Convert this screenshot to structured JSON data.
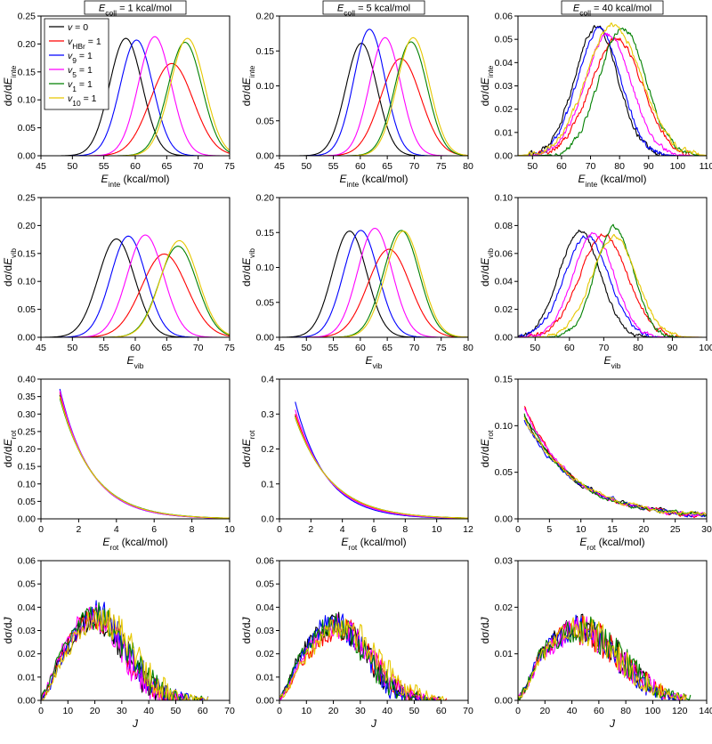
{
  "colors": {
    "v0": "#000000",
    "vHBr": "#ff0000",
    "v9": "#0000ff",
    "v5": "#ff00ff",
    "v1": "#008000",
    "v10": "#e6c800"
  },
  "column_headers": [
    {
      "symbol": "E",
      "sub": "coll",
      "text": " = 1 kcal/mol"
    },
    {
      "symbol": "E",
      "sub": "coll",
      "text": " = 5 kcal/mol"
    },
    {
      "symbol": "E",
      "sub": "coll",
      "text": " = 40 kcal/mol"
    }
  ],
  "legend": [
    {
      "key": "v0",
      "symbol": "v",
      "sub": "",
      "text": " = 0"
    },
    {
      "key": "vHBr",
      "symbol": "v",
      "sub": "HBr",
      "text": " = 1"
    },
    {
      "key": "v9",
      "symbol": "v",
      "sub": "9",
      "text": " = 1"
    },
    {
      "key": "v5",
      "symbol": "v",
      "sub": "5",
      "text": " = 1"
    },
    {
      "key": "v1",
      "symbol": "v",
      "sub": "1",
      "text": " = 1"
    },
    {
      "key": "v10",
      "symbol": "v",
      "sub": "10",
      "text": " = 1"
    }
  ],
  "chart_data": [
    {
      "type": "line",
      "panel": "inte-1",
      "kind": "gauss",
      "xlim": [
        45,
        75
      ],
      "xticks": [
        45,
        50,
        55,
        60,
        65,
        70,
        75
      ],
      "ylim": [
        0,
        0.25
      ],
      "yticks": [
        "0.00",
        "0.05",
        "0.10",
        "0.15",
        "0.20",
        "0.25"
      ],
      "xlabel": {
        "sym": "E",
        "sub": "inte",
        "rest": " (kcal/mol)"
      },
      "ylabel": {
        "pre": "dσ/d",
        "sym": "E",
        "sub": "inte"
      },
      "series": [
        {
          "name": "v = 0",
          "key": "v0",
          "center": 58.5,
          "sigma": 2.6,
          "peak": 0.21
        },
        {
          "name": "vHBr = 1",
          "key": "vHBr",
          "center": 65.8,
          "sigma": 3.4,
          "peak": 0.165
        },
        {
          "name": "v9 = 1",
          "key": "v9",
          "center": 60.2,
          "sigma": 2.6,
          "peak": 0.207
        },
        {
          "name": "v5 = 1",
          "key": "v5",
          "center": 63.1,
          "sigma": 2.6,
          "peak": 0.213
        },
        {
          "name": "v1 = 1",
          "key": "v1",
          "center": 67.9,
          "sigma": 2.7,
          "peak": 0.203
        },
        {
          "name": "v10 = 1",
          "key": "v10",
          "center": 68.3,
          "sigma": 2.7,
          "peak": 0.21
        }
      ]
    },
    {
      "type": "line",
      "panel": "inte-5",
      "kind": "gauss",
      "xlim": [
        45,
        80
      ],
      "xticks": [
        45,
        50,
        55,
        60,
        65,
        70,
        75,
        80
      ],
      "ylim": [
        0,
        0.2
      ],
      "yticks": [
        "0.00",
        "0.05",
        "0.10",
        "0.15",
        "0.20"
      ],
      "xlabel": {
        "sym": "E",
        "sub": "inte",
        "rest": " (kcal/mol)"
      },
      "ylabel": {
        "pre": "dσ/d",
        "sym": "E",
        "sub": "inte"
      },
      "series": [
        {
          "name": "v = 0",
          "key": "v0",
          "center": 60.2,
          "sigma": 2.9,
          "peak": 0.161
        },
        {
          "name": "vHBr = 1",
          "key": "vHBr",
          "center": 67.5,
          "sigma": 3.7,
          "peak": 0.139
        },
        {
          "name": "v9 = 1",
          "key": "v9",
          "center": 61.7,
          "sigma": 2.9,
          "peak": 0.181
        },
        {
          "name": "v5 = 1",
          "key": "v5",
          "center": 64.6,
          "sigma": 2.9,
          "peak": 0.169
        },
        {
          "name": "v1 = 1",
          "key": "v1",
          "center": 69.4,
          "sigma": 3.0,
          "peak": 0.163
        },
        {
          "name": "v10 = 1",
          "key": "v10",
          "center": 69.8,
          "sigma": 3.0,
          "peak": 0.169
        }
      ]
    },
    {
      "type": "line",
      "panel": "inte-40",
      "kind": "noisy",
      "noise": 0.0025,
      "xlim": [
        45,
        110
      ],
      "xticks": [
        50,
        60,
        70,
        80,
        90,
        100,
        110
      ],
      "ylim": [
        0,
        0.06
      ],
      "yticks": [
        "0.00",
        "0.01",
        "0.02",
        "0.03",
        "0.04",
        "0.05",
        "0.06"
      ],
      "xlabel": {
        "sym": "E",
        "sub": "inte",
        "rest": " (kcal/mol)"
      },
      "ylabel": {
        "pre": "dσ/d",
        "sym": "E",
        "sub": "inte"
      },
      "series": [
        {
          "name": "v = 0",
          "key": "v0",
          "center": 72,
          "sigma": 7.5,
          "peak": 0.055
        },
        {
          "name": "vHBr = 1",
          "key": "vHBr",
          "center": 79,
          "sigma": 9.0,
          "peak": 0.05
        },
        {
          "name": "v9 = 1",
          "key": "v9",
          "center": 73,
          "sigma": 7.5,
          "peak": 0.054
        },
        {
          "name": "v5 = 1",
          "key": "v5",
          "center": 76,
          "sigma": 8.0,
          "peak": 0.052
        },
        {
          "name": "v1 = 1",
          "key": "v1",
          "center": 81,
          "sigma": 8.0,
          "peak": 0.055
        },
        {
          "name": "v10 = 1",
          "key": "v10",
          "center": 78,
          "sigma": 9.5,
          "peak": 0.056
        }
      ]
    },
    {
      "type": "line",
      "panel": "vib-1",
      "kind": "gauss",
      "xlim": [
        45,
        75
      ],
      "xticks": [
        45,
        50,
        55,
        60,
        65,
        70,
        75
      ],
      "ylim": [
        0,
        0.25
      ],
      "yticks": [
        "0.00",
        "0.05",
        "0.10",
        "0.15",
        "0.20",
        "0.25"
      ],
      "xlabel": {
        "sym": "E",
        "sub": "vib",
        "rest": ""
      },
      "ylabel": {
        "pre": "dσ/d",
        "sym": "E",
        "sub": "vib"
      },
      "series": [
        {
          "name": "v = 0",
          "key": "v0",
          "center": 57.0,
          "sigma": 2.9,
          "peak": 0.176
        },
        {
          "name": "vHBr = 1",
          "key": "vHBr",
          "center": 64.6,
          "sigma": 3.6,
          "peak": 0.149
        },
        {
          "name": "v9 = 1",
          "key": "v9",
          "center": 58.9,
          "sigma": 2.8,
          "peak": 0.181
        },
        {
          "name": "v5 = 1",
          "key": "v5",
          "center": 61.6,
          "sigma": 2.9,
          "peak": 0.183
        },
        {
          "name": "v1 = 1",
          "key": "v1",
          "center": 66.8,
          "sigma": 3.0,
          "peak": 0.163
        },
        {
          "name": "v10 = 1",
          "key": "v10",
          "center": 67.0,
          "sigma": 3.0,
          "peak": 0.173
        }
      ]
    },
    {
      "type": "line",
      "panel": "vib-5",
      "kind": "gauss",
      "xlim": [
        45,
        80
      ],
      "xticks": [
        45,
        50,
        55,
        60,
        65,
        70,
        75,
        80
      ],
      "ylim": [
        0,
        0.2
      ],
      "yticks": [
        "0.00",
        "0.05",
        "0.10",
        "0.15",
        "0.20"
      ],
      "xlabel": {
        "sym": "E",
        "sub": "vib",
        "rest": ""
      },
      "ylabel": {
        "pre": "dσ/d",
        "sym": "E",
        "sub": "vib"
      },
      "series": [
        {
          "name": "v = 0",
          "key": "v0",
          "center": 58.0,
          "sigma": 3.2,
          "peak": 0.152
        },
        {
          "name": "vHBr = 1",
          "key": "vHBr",
          "center": 65.3,
          "sigma": 3.9,
          "peak": 0.126
        },
        {
          "name": "v9 = 1",
          "key": "v9",
          "center": 60.1,
          "sigma": 3.2,
          "peak": 0.153
        },
        {
          "name": "v5 = 1",
          "key": "v5",
          "center": 62.7,
          "sigma": 3.2,
          "peak": 0.156
        },
        {
          "name": "v1 = 1",
          "key": "v1",
          "center": 67.6,
          "sigma": 3.3,
          "peak": 0.153
        },
        {
          "name": "v10 = 1",
          "key": "v10",
          "center": 68.0,
          "sigma": 3.3,
          "peak": 0.152
        }
      ]
    },
    {
      "type": "line",
      "panel": "vib-40",
      "kind": "noisy",
      "noise": 0.003,
      "xlim": [
        45,
        100
      ],
      "xticks": [
        50,
        60,
        70,
        80,
        90,
        100
      ],
      "ylim": [
        0,
        0.1
      ],
      "yticks": [
        "0.00",
        "0.02",
        "0.04",
        "0.06",
        "0.08",
        "0.10"
      ],
      "xlabel": {
        "sym": "E",
        "sub": "vib",
        "rest": ""
      },
      "ylabel": {
        "pre": "dσ/d",
        "sym": "E",
        "sub": "vib"
      },
      "series": [
        {
          "name": "v = 0",
          "key": "v0",
          "center": 63,
          "sigma": 6.0,
          "peak": 0.076
        },
        {
          "name": "vHBr = 1",
          "key": "vHBr",
          "center": 70,
          "sigma": 7.0,
          "peak": 0.073
        },
        {
          "name": "v9 = 1",
          "key": "v9",
          "center": 65,
          "sigma": 6.5,
          "peak": 0.072
        },
        {
          "name": "v5 = 1",
          "key": "v5",
          "center": 67,
          "sigma": 6.0,
          "peak": 0.074
        },
        {
          "name": "v1 = 1",
          "key": "v1",
          "center": 73,
          "sigma": 5.5,
          "peak": 0.079
        },
        {
          "name": "v10 = 1",
          "key": "v10",
          "center": 73,
          "sigma": 6.5,
          "peak": 0.072
        }
      ]
    },
    {
      "type": "line",
      "panel": "rot-1",
      "kind": "decay",
      "noise": 0,
      "xlim": [
        0,
        10
      ],
      "xticks": [
        0,
        2,
        4,
        6,
        8,
        10
      ],
      "ylim": [
        0,
        0.4
      ],
      "yticks": [
        "0.00",
        "0.05",
        "0.10",
        "0.15",
        "0.20",
        "0.25",
        "0.30",
        "0.35",
        "0.40"
      ],
      "xlabel": {
        "sym": "E",
        "sub": "rot",
        "rest": " (kcal/mol)"
      },
      "ylabel": {
        "pre": "dσ/d",
        "sym": "E",
        "sub": "rot"
      },
      "series": [
        {
          "name": "v = 0",
          "key": "v0",
          "x0": 1,
          "y0": 0.355,
          "tau": 1.72
        },
        {
          "name": "vHBr = 1",
          "key": "vHBr",
          "x0": 1,
          "y0": 0.362,
          "tau": 1.7
        },
        {
          "name": "v9 = 1",
          "key": "v9",
          "x0": 1,
          "y0": 0.372,
          "tau": 1.65
        },
        {
          "name": "v5 = 1",
          "key": "v5",
          "x0": 1,
          "y0": 0.367,
          "tau": 1.67
        },
        {
          "name": "v1 = 1",
          "key": "v1",
          "x0": 1,
          "y0": 0.345,
          "tau": 1.78
        },
        {
          "name": "v10 = 1",
          "key": "v10",
          "x0": 1,
          "y0": 0.35,
          "tau": 1.75
        }
      ]
    },
    {
      "type": "line",
      "panel": "rot-5",
      "kind": "decay",
      "noise": 0,
      "xlim": [
        0,
        12
      ],
      "xticks": [
        0,
        2,
        4,
        6,
        8,
        10,
        12
      ],
      "ylim": [
        0,
        0.4
      ],
      "yticks": [
        "0.0",
        "0.1",
        "0.2",
        "0.3",
        "0.4"
      ],
      "xlabel": {
        "sym": "E",
        "sub": "rot",
        "rest": " (kcal/mol)"
      },
      "ylabel": {
        "pre": "dσ/d",
        "sym": "E",
        "sub": "rot"
      },
      "series": [
        {
          "name": "v = 0",
          "key": "v0",
          "x0": 1,
          "y0": 0.295,
          "tau": 2.25
        },
        {
          "name": "vHBr = 1",
          "key": "vHBr",
          "x0": 1,
          "y0": 0.3,
          "tau": 2.2
        },
        {
          "name": "v9 = 1",
          "key": "v9",
          "x0": 1,
          "y0": 0.335,
          "tau": 1.95
        },
        {
          "name": "v5 = 1",
          "key": "v5",
          "x0": 1,
          "y0": 0.312,
          "tau": 2.1
        },
        {
          "name": "v1 = 1",
          "key": "v1",
          "x0": 1,
          "y0": 0.29,
          "tau": 2.3
        },
        {
          "name": "v10 = 1",
          "key": "v10",
          "x0": 1,
          "y0": 0.292,
          "tau": 2.28
        }
      ]
    },
    {
      "type": "line",
      "panel": "rot-40",
      "kind": "decay",
      "noise": 0.002,
      "xlim": [
        0,
        30
      ],
      "xticks": [
        0,
        5,
        10,
        15,
        20,
        25,
        30
      ],
      "ylim": [
        0,
        0.15
      ],
      "yticks": [
        "0.00",
        "0.05",
        "0.10",
        "0.15"
      ],
      "xlabel": {
        "sym": "E",
        "sub": "rot",
        "rest": " (kcal/mol)"
      },
      "ylabel": {
        "pre": "dσ/d",
        "sym": "E",
        "sub": "rot"
      },
      "series": [
        {
          "name": "v = 0",
          "key": "v0",
          "x0": 1,
          "y0": 0.11,
          "tau": 8.5
        },
        {
          "name": "vHBr = 1",
          "key": "vHBr",
          "x0": 1,
          "y0": 0.12,
          "tau": 7.8
        },
        {
          "name": "v9 = 1",
          "key": "v9",
          "x0": 1,
          "y0": 0.105,
          "tau": 8.8
        },
        {
          "name": "v5 = 1",
          "key": "v5",
          "x0": 1,
          "y0": 0.118,
          "tau": 8.0
        },
        {
          "name": "v1 = 1",
          "key": "v1",
          "x0": 1,
          "y0": 0.112,
          "tau": 8.3
        },
        {
          "name": "v10 = 1",
          "key": "v10",
          "x0": 1,
          "y0": 0.108,
          "tau": 8.6
        }
      ]
    },
    {
      "type": "line",
      "panel": "J-1",
      "kind": "jdist",
      "noise": 0.007,
      "xlim": [
        0,
        70
      ],
      "xticks": [
        0,
        10,
        20,
        30,
        40,
        50,
        60,
        70
      ],
      "ylim": [
        0,
        0.06
      ],
      "yticks": [
        "0.00",
        "0.01",
        "0.02",
        "0.03",
        "0.04",
        "0.05",
        "0.06"
      ],
      "xlabel": {
        "sym": "J",
        "sub": "",
        "rest": ""
      },
      "ylabel": {
        "pre": "dσ/d",
        "sym": "J",
        "sub": ""
      },
      "series": [
        {
          "name": "v = 0",
          "key": "v0",
          "center": 20,
          "sigma": 11,
          "peak": 0.035,
          "xmax": 60
        },
        {
          "name": "vHBr = 1",
          "key": "vHBr",
          "center": 20,
          "sigma": 11,
          "peak": 0.036,
          "xmax": 60
        },
        {
          "name": "v9 = 1",
          "key": "v9",
          "center": 21,
          "sigma": 11,
          "peak": 0.037,
          "xmax": 62
        },
        {
          "name": "v5 = 1",
          "key": "v5",
          "center": 19,
          "sigma": 11,
          "peak": 0.036,
          "xmax": 58
        },
        {
          "name": "v1 = 1",
          "key": "v1",
          "center": 20,
          "sigma": 12,
          "peak": 0.036,
          "xmax": 60
        },
        {
          "name": "v10 = 1",
          "key": "v10",
          "center": 22,
          "sigma": 12,
          "peak": 0.035,
          "xmax": 62
        }
      ]
    },
    {
      "type": "line",
      "panel": "J-5",
      "kind": "jdist",
      "noise": 0.006,
      "xlim": [
        0,
        70
      ],
      "xticks": [
        0,
        10,
        20,
        30,
        40,
        50,
        60,
        70
      ],
      "ylim": [
        0,
        0.06
      ],
      "yticks": [
        "0.00",
        "0.01",
        "0.02",
        "0.03",
        "0.04",
        "0.05",
        "0.06"
      ],
      "xlabel": {
        "sym": "J",
        "sub": "",
        "rest": ""
      },
      "ylabel": {
        "pre": "dσ/d",
        "sym": "J",
        "sub": ""
      },
      "series": [
        {
          "name": "v = 0",
          "key": "v0",
          "center": 20,
          "sigma": 12,
          "peak": 0.033,
          "xmax": 60
        },
        {
          "name": "vHBr = 1",
          "key": "vHBr",
          "center": 22,
          "sigma": 12,
          "peak": 0.031,
          "xmax": 62
        },
        {
          "name": "v9 = 1",
          "key": "v9",
          "center": 20,
          "sigma": 11,
          "peak": 0.034,
          "xmax": 58
        },
        {
          "name": "v5 = 1",
          "key": "v5",
          "center": 21,
          "sigma": 12,
          "peak": 0.032,
          "xmax": 60
        },
        {
          "name": "v1 = 1",
          "key": "v1",
          "center": 20,
          "sigma": 12,
          "peak": 0.032,
          "xmax": 60
        },
        {
          "name": "v10 = 1",
          "key": "v10",
          "center": 23,
          "sigma": 13,
          "peak": 0.031,
          "xmax": 64
        }
      ]
    },
    {
      "type": "line",
      "panel": "J-40",
      "kind": "jdist",
      "noise": 0.0035,
      "xlim": [
        0,
        140
      ],
      "xticks": [
        0,
        20,
        40,
        60,
        80,
        100,
        120,
        140
      ],
      "ylim": [
        0,
        0.03
      ],
      "yticks": [
        "0.00",
        "0.01",
        "0.02",
        "0.03"
      ],
      "xlabel": {
        "sym": "J",
        "sub": "",
        "rest": ""
      },
      "ylabel": {
        "pre": "dσ/d",
        "sym": "J",
        "sub": ""
      },
      "series": [
        {
          "name": "v = 0",
          "key": "v0",
          "center": 45,
          "sigma": 30,
          "peak": 0.0155,
          "xmax": 125
        },
        {
          "name": "vHBr = 1",
          "key": "vHBr",
          "center": 45,
          "sigma": 30,
          "peak": 0.015,
          "xmax": 125
        },
        {
          "name": "v9 = 1",
          "key": "v9",
          "center": 44,
          "sigma": 29,
          "peak": 0.0155,
          "xmax": 122
        },
        {
          "name": "v5 = 1",
          "key": "v5",
          "center": 46,
          "sigma": 30,
          "peak": 0.015,
          "xmax": 125
        },
        {
          "name": "v1 = 1",
          "key": "v1",
          "center": 45,
          "sigma": 31,
          "peak": 0.0152,
          "xmax": 128
        },
        {
          "name": "v10 = 1",
          "key": "v10",
          "center": 46,
          "sigma": 30,
          "peak": 0.015,
          "xmax": 125
        }
      ]
    }
  ]
}
